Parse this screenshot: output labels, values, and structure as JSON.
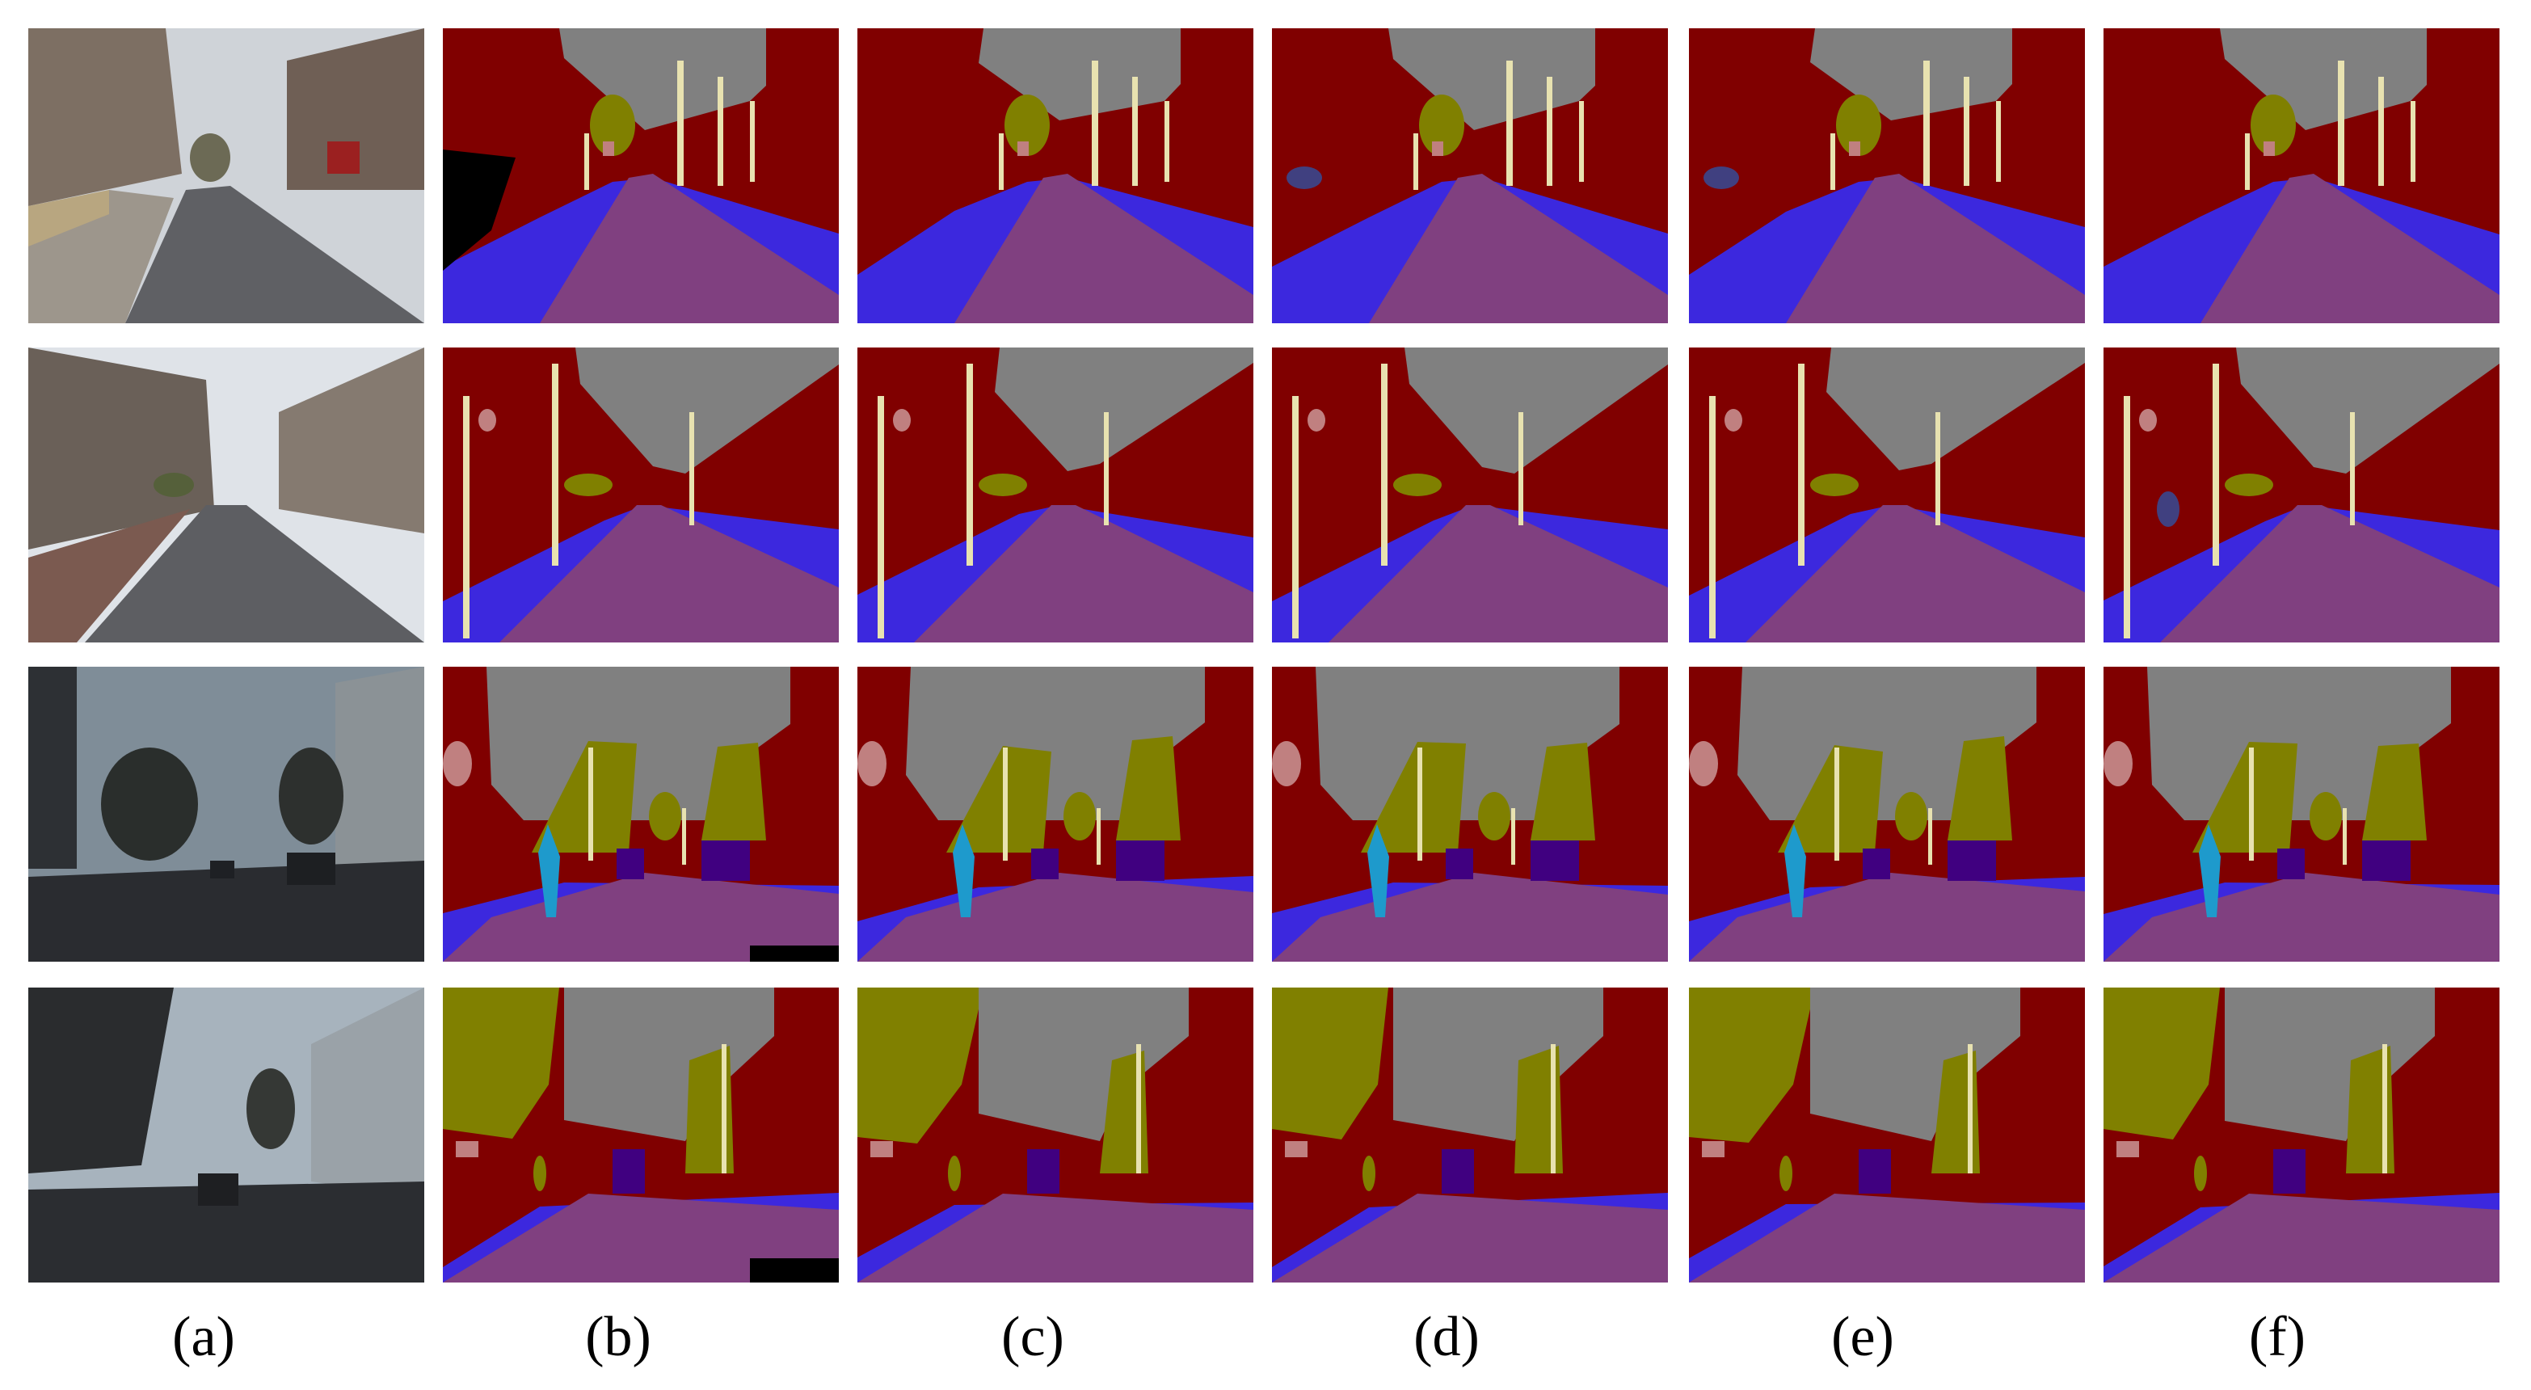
{
  "figure": {
    "captions": [
      "(a)",
      "(b)",
      "(c)",
      "(d)",
      "(e)",
      "(f)"
    ],
    "rows": [
      {
        "scene": "residential-street-daylight"
      },
      {
        "scene": "terraced-street-daylight"
      },
      {
        "scene": "street-dusk-pedestrian-cars"
      },
      {
        "scene": "street-dusk-trees-building"
      }
    ],
    "class_colors": {
      "sky": "#808080",
      "building": "#800000",
      "pole": "#e8e2b0",
      "road": "#804080",
      "sidewalk": "#3c28de",
      "tree": "#808000",
      "sign_symbol": "#c08080",
      "fence": "#404080",
      "car": "#400080",
      "pedestrian": "#1e9acc",
      "bicyclist": "#004080",
      "unlabelled": "#000000"
    }
  }
}
